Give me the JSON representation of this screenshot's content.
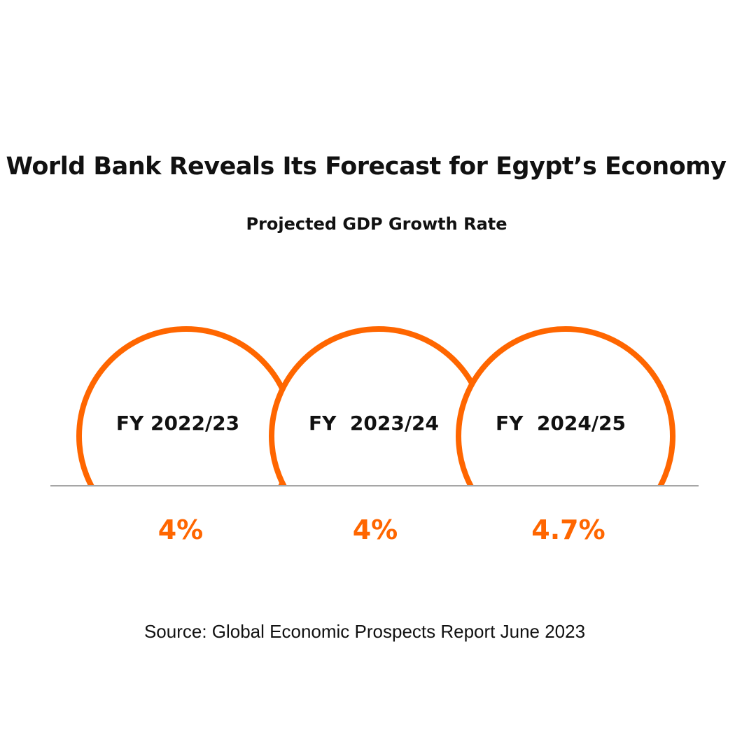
{
  "title": "World Bank Reveals Its Forecast for Egypt’s Economy",
  "subtitle": "Projected GDP Growth Rate",
  "source": "Source: Global Economic Prospects Report June 2023",
  "colors": {
    "accent": "#FF6600",
    "text": "#111111",
    "baseline": "#888888"
  },
  "chart_data": {
    "type": "table",
    "title": "Projected GDP Growth Rate",
    "categories": [
      "FY 2022/23",
      "FY  2023/24",
      "FY  2024/25"
    ],
    "values": [
      4,
      4,
      4.7
    ],
    "value_labels": [
      "4%",
      "4%",
      "4.7%"
    ],
    "unit": "%"
  }
}
